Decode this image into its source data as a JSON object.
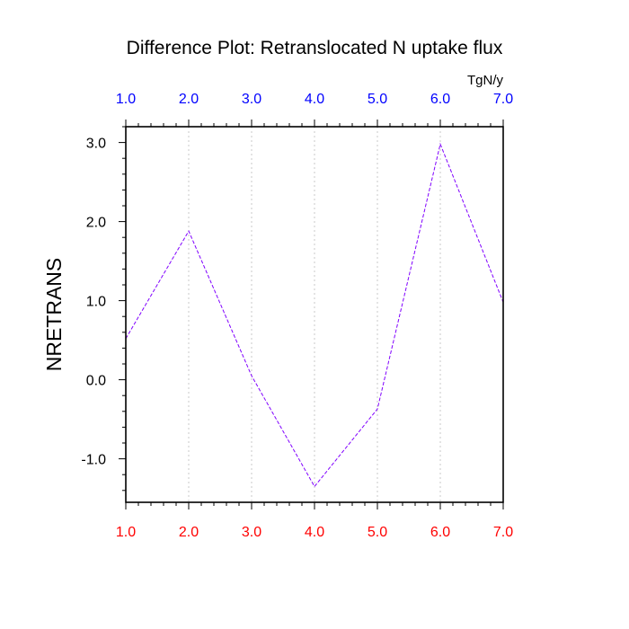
{
  "chart_data": {
    "type": "line",
    "title": "Difference Plot: Retranslocated N uptake flux",
    "units_label": "TgN/y",
    "ylabel": "NRETRANS",
    "xlabel": "",
    "x": [
      1.0,
      2.0,
      3.0,
      4.0,
      5.0,
      6.0,
      7.0
    ],
    "xlim": [
      1.0,
      7.0
    ],
    "ylim": [
      -1.55,
      3.2
    ],
    "x_ticks": [
      1.0,
      2.0,
      3.0,
      4.0,
      5.0,
      6.0,
      7.0
    ],
    "x_tick_labels_bottom": [
      "1.0",
      "2.0",
      "3.0",
      "4.0",
      "5.0",
      "6.0",
      "7.0"
    ],
    "x_tick_labels_top": [
      "1.0",
      "2.0",
      "3.0",
      "4.0",
      "5.0",
      "6.0",
      "7.0"
    ],
    "y_ticks": [
      -1.0,
      0.0,
      1.0,
      2.0,
      3.0
    ],
    "y_tick_labels": [
      "-1.0",
      "0.0",
      "1.0",
      "2.0",
      "3.0"
    ],
    "series": [
      {
        "values": [
          0.52,
          1.88,
          0.05,
          -1.35,
          -0.37,
          2.98,
          0.98
        ],
        "color": "#8000ff",
        "dash": "dashed"
      }
    ],
    "grid": "vertical-dotted",
    "colors": {
      "top_axis_labels": "#0000ff",
      "bottom_axis_labels": "#ff0000",
      "grid": "#c8c8c8",
      "frame": "#000000"
    }
  }
}
